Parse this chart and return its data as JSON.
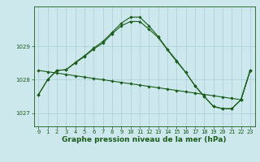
{
  "title": "Graphe pression niveau de la mer (hPa)",
  "background_color": "#cce8ec",
  "grid_color": "#aacdd4",
  "line_color": "#1a5c1a",
  "marker_color": "#1a5c1a",
  "xlim": [
    -0.5,
    23.5
  ],
  "ylim": [
    1026.6,
    1030.2
  ],
  "yticks": [
    1027,
    1028,
    1029
  ],
  "xticks": [
    0,
    1,
    2,
    3,
    4,
    5,
    6,
    7,
    8,
    9,
    10,
    11,
    12,
    13,
    14,
    15,
    16,
    17,
    18,
    19,
    20,
    21,
    22,
    23
  ],
  "s1": [
    1027.55,
    1028.0,
    1028.28,
    1028.3,
    1028.5,
    1028.7,
    1028.92,
    1029.1,
    1029.38,
    1029.62,
    1029.75,
    1029.75,
    1029.52,
    1029.27,
    1028.9,
    1028.55,
    1028.22,
    1027.82,
    1027.5,
    1027.2,
    1027.13,
    1027.13,
    1027.4,
    1028.28
  ],
  "s2": [
    1027.55,
    1028.0,
    1028.28,
    1028.3,
    1028.52,
    1028.72,
    1028.95,
    1029.15,
    1029.42,
    1029.7,
    1029.88,
    1029.88,
    1029.62,
    1029.3,
    1028.92,
    1028.58,
    1028.22,
    1027.82,
    1027.5,
    1027.2,
    1027.13,
    1027.13,
    1027.4,
    1028.28
  ],
  "s3": [
    1028.28,
    1028.24,
    1028.2,
    1028.16,
    1028.12,
    1028.08,
    1028.04,
    1028.0,
    1027.96,
    1027.92,
    1027.88,
    1027.84,
    1027.8,
    1027.76,
    1027.72,
    1027.68,
    1027.64,
    1027.6,
    1027.56,
    1027.52,
    1027.48,
    1027.44,
    1027.4,
    1028.28
  ],
  "title_fontsize": 6.5,
  "tick_fontsize": 5.0,
  "ylabel_fontsize": 6.5
}
